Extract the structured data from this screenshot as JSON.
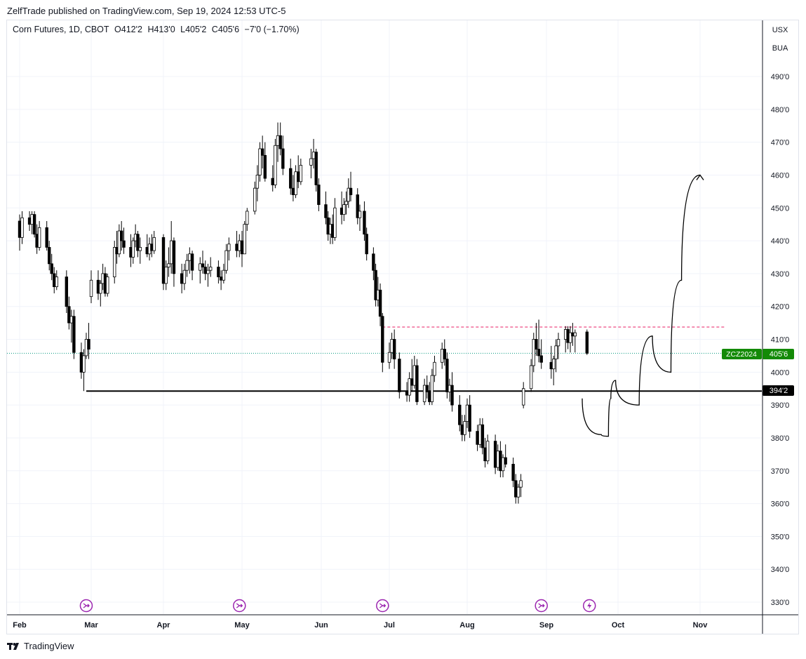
{
  "publisher_line": "ZelfTrade published on TradingView.com, Sep 19, 2024 12:53 UTC-5",
  "legend": {
    "symbol": "Corn Futures, 1D, CBOT",
    "open": "O412'2",
    "high": "H413'0",
    "low": "L405'2",
    "close": "C405'6",
    "change": "−7'0 (−1.70%)"
  },
  "currency_buttons": [
    "USX",
    "BUA"
  ],
  "footer": {
    "brand": "TradingView",
    "logo_icon": "tradingview-logo-icon"
  },
  "price_labels": {
    "symbol_tag": "ZCZ2024",
    "last_price": "405'6",
    "support_price": "394'2"
  },
  "colors": {
    "up_candle": "#ffffff",
    "down_candle": "#000000",
    "support_line": "#000000",
    "resistance_line": "#e91e63",
    "last_price_line": "#089981",
    "last_price_tag": "#138a07",
    "event_icon": "#9c27b0"
  },
  "chart_data": {
    "type": "candlestick",
    "title": "Corn Futures, 1D, CBOT",
    "x_ticks": [
      "Feb",
      "Mar",
      "Apr",
      "May",
      "Jun",
      "Jul",
      "Aug",
      "Sep",
      "Oct",
      "Nov"
    ],
    "y_ticks": [
      "330'0",
      "340'0",
      "350'0",
      "360'0",
      "370'0",
      "380'0",
      "390'0",
      "400'0",
      "410'0",
      "420'0",
      "430'0",
      "440'0",
      "450'0",
      "460'0",
      "470'0",
      "480'0",
      "490'0"
    ],
    "y_range": [
      326,
      500
    ],
    "last_price": 405.75,
    "horizontal_lines": [
      {
        "name": "support",
        "value": 394.25,
        "style": "solid",
        "start_date": "2024-02-28"
      },
      {
        "name": "resistance",
        "value": 413.75,
        "style": "dashed",
        "start_date": "2024-06-28"
      }
    ],
    "event_icons": [
      {
        "date": "2024-02-28",
        "kind": "split-arrow-icon"
      },
      {
        "date": "2024-04-30",
        "kind": "split-arrow-icon"
      },
      {
        "date": "2024-06-28",
        "kind": "split-arrow-icon"
      },
      {
        "date": "2024-08-30",
        "kind": "split-arrow-icon"
      },
      {
        "date": "2024-09-19",
        "kind": "lightning-icon"
      }
    ],
    "projection_path": [
      [
        "2024-09-16",
        392
      ],
      [
        "2024-09-24",
        381
      ],
      [
        "2024-09-27",
        380.5
      ],
      [
        "2024-09-28",
        392
      ],
      [
        "2024-09-30",
        397.5
      ],
      [
        "2024-10-09",
        390
      ],
      [
        "2024-10-14",
        411
      ],
      [
        "2024-10-21",
        400
      ],
      [
        "2024-10-25",
        428
      ],
      [
        "2024-11-01",
        460
      ]
    ],
    "candles": [
      [
        "2024-02-01",
        446,
        448,
        437,
        441
      ],
      [
        "2024-02-02",
        441,
        449,
        439,
        447
      ],
      [
        "2024-02-05",
        447,
        449,
        443,
        445
      ],
      [
        "2024-02-06",
        445,
        449,
        442,
        448
      ],
      [
        "2024-02-07",
        448,
        449,
        441,
        442
      ],
      [
        "2024-02-08",
        442,
        445,
        436,
        438
      ],
      [
        "2024-02-09",
        438,
        446,
        437,
        444
      ],
      [
        "2024-02-12",
        444,
        446,
        437,
        438
      ],
      [
        "2024-02-13",
        438,
        440,
        431,
        433
      ],
      [
        "2024-02-14",
        433,
        436,
        428,
        430
      ],
      [
        "2024-02-15",
        430,
        432,
        424,
        426
      ],
      [
        "2024-02-16",
        426,
        431,
        425,
        429
      ],
      [
        "2024-02-20",
        429,
        431,
        418,
        420
      ],
      [
        "2024-02-21",
        420,
        423,
        413,
        415
      ],
      [
        "2024-02-22",
        415,
        419,
        409,
        417
      ],
      [
        "2024-02-23",
        417,
        419,
        404,
        406
      ],
      [
        "2024-02-26",
        406,
        409,
        398,
        400
      ],
      [
        "2024-02-27",
        400,
        407,
        394.25,
        405
      ],
      [
        "2024-02-28",
        405,
        412,
        404,
        410
      ],
      [
        "2024-02-29",
        410,
        415,
        404,
        407
      ],
      [
        "2024-03-01",
        423,
        431,
        421,
        428
      ],
      [
        "2024-03-04",
        428,
        431,
        422,
        424
      ],
      [
        "2024-03-05",
        424,
        428,
        420,
        427
      ],
      [
        "2024-03-06",
        427,
        433,
        425,
        430
      ],
      [
        "2024-03-07",
        430,
        432,
        423,
        424
      ],
      [
        "2024-03-08",
        424,
        430,
        423,
        429
      ],
      [
        "2024-03-11",
        429,
        440,
        427,
        438
      ],
      [
        "2024-03-12",
        438,
        443,
        433,
        436
      ],
      [
        "2024-03-13",
        436,
        445,
        435,
        443
      ],
      [
        "2024-03-14",
        443,
        446,
        437,
        440
      ],
      [
        "2024-03-15",
        440,
        444,
        436,
        438
      ],
      [
        "2024-03-18",
        438,
        442,
        432,
        435
      ],
      [
        "2024-03-19",
        435,
        441,
        433,
        440
      ],
      [
        "2024-03-20",
        440,
        445,
        438,
        442
      ],
      [
        "2024-03-21",
        442,
        443,
        435,
        437
      ],
      [
        "2024-03-22",
        437,
        441,
        433,
        438
      ],
      [
        "2024-03-25",
        438,
        442,
        435,
        436
      ],
      [
        "2024-03-26",
        436,
        441,
        434,
        439
      ],
      [
        "2024-03-27",
        439,
        442,
        435,
        437
      ],
      [
        "2024-03-28",
        437,
        443,
        436,
        441
      ],
      [
        "2024-04-01",
        441,
        442,
        425,
        427
      ],
      [
        "2024-04-02",
        427,
        434,
        425,
        432
      ],
      [
        "2024-04-03",
        432,
        438,
        429,
        433
      ],
      [
        "2024-04-04",
        433,
        446,
        430,
        440
      ],
      [
        "2024-04-05",
        440,
        441,
        426,
        430
      ],
      [
        "2024-04-08",
        430,
        433,
        424,
        427
      ],
      [
        "2024-04-09",
        427,
        433,
        425,
        431
      ],
      [
        "2024-04-10",
        431,
        436,
        429,
        434
      ],
      [
        "2024-04-11",
        434,
        438,
        430,
        436
      ],
      [
        "2024-04-12",
        436,
        437,
        428,
        431
      ],
      [
        "2024-04-15",
        431,
        435,
        427,
        433
      ],
      [
        "2024-04-16",
        433,
        437,
        430,
        432
      ],
      [
        "2024-04-17",
        432,
        434,
        428,
        430
      ],
      [
        "2024-04-18",
        430,
        433,
        426,
        431
      ],
      [
        "2024-04-19",
        431,
        435,
        429,
        432
      ],
      [
        "2024-04-22",
        432,
        434,
        427,
        429
      ],
      [
        "2024-04-23",
        429,
        431,
        425,
        428
      ],
      [
        "2024-04-24",
        428,
        433,
        427,
        431
      ],
      [
        "2024-04-25",
        431,
        439,
        430,
        437
      ],
      [
        "2024-04-26",
        437,
        441,
        434,
        439
      ],
      [
        "2024-04-29",
        439,
        443,
        435,
        437
      ],
      [
        "2024-04-30",
        437,
        442,
        435,
        440
      ],
      [
        "2024-05-01",
        440,
        443,
        432,
        436
      ],
      [
        "2024-05-02",
        436,
        446,
        436,
        445
      ],
      [
        "2024-05-03",
        445,
        450,
        443,
        449
      ],
      [
        "2024-05-06",
        449,
        458,
        448,
        456
      ],
      [
        "2024-05-07",
        456,
        463,
        452,
        460
      ],
      [
        "2024-05-08",
        460,
        470,
        458,
        468
      ],
      [
        "2024-05-09",
        468,
        472,
        462,
        466
      ],
      [
        "2024-05-10",
        466,
        470,
        458,
        459
      ],
      [
        "2024-05-13",
        459,
        463,
        455,
        457
      ],
      [
        "2024-05-14",
        457,
        471,
        456,
        469
      ],
      [
        "2024-05-15",
        469,
        476,
        464,
        472
      ],
      [
        "2024-05-16",
        472,
        476,
        466,
        468
      ],
      [
        "2024-05-17",
        468,
        472,
        460,
        462
      ],
      [
        "2024-05-20",
        462,
        465,
        454,
        456
      ],
      [
        "2024-05-21",
        456,
        460,
        452,
        454
      ],
      [
        "2024-05-22",
        454,
        463,
        453,
        461
      ],
      [
        "2024-05-23",
        461,
        466,
        456,
        458
      ],
      [
        "2024-05-24",
        458,
        465,
        457,
        463
      ],
      [
        "2024-05-28",
        463,
        468,
        459,
        465
      ],
      [
        "2024-05-29",
        465,
        471,
        462,
        467
      ],
      [
        "2024-05-30",
        467,
        468,
        455,
        457
      ],
      [
        "2024-05-31",
        457,
        459,
        449,
        451
      ],
      [
        "2024-06-03",
        451,
        455,
        445,
        447
      ],
      [
        "2024-06-04",
        447,
        449,
        440,
        442
      ],
      [
        "2024-06-05",
        442,
        447,
        439,
        445
      ],
      [
        "2024-06-06",
        445,
        448,
        439,
        441
      ],
      [
        "2024-06-07",
        441,
        453,
        440,
        450
      ],
      [
        "2024-06-10",
        450,
        455,
        445,
        448
      ],
      [
        "2024-06-11",
        448,
        453,
        446,
        451
      ],
      [
        "2024-06-12",
        451,
        455,
        448,
        452
      ],
      [
        "2024-06-13",
        452,
        459,
        450,
        456
      ],
      [
        "2024-06-14",
        456,
        461,
        452,
        454
      ],
      [
        "2024-06-17",
        454,
        456,
        445,
        447
      ],
      [
        "2024-06-18",
        447,
        451,
        443,
        449
      ],
      [
        "2024-06-20",
        449,
        452,
        440,
        442
      ],
      [
        "2024-06-21",
        442,
        444,
        434,
        436
      ],
      [
        "2024-06-24",
        436,
        438,
        428,
        431
      ],
      [
        "2024-06-25",
        431,
        433,
        420,
        422
      ],
      [
        "2024-06-26",
        422,
        429,
        420,
        425
      ],
      [
        "2024-06-27",
        425,
        427,
        414,
        417
      ],
      [
        "2024-06-28",
        417,
        418,
        400,
        403
      ],
      [
        "2024-07-01",
        403,
        409,
        401,
        406
      ],
      [
        "2024-07-02",
        406,
        412,
        404,
        410
      ],
      [
        "2024-07-03",
        410,
        413,
        401,
        404
      ],
      [
        "2024-07-05",
        404,
        406,
        392,
        394
      ],
      [
        "2024-07-08",
        394,
        397,
        391,
        393
      ],
      [
        "2024-07-09",
        393,
        400,
        391,
        398
      ],
      [
        "2024-07-10",
        398,
        404,
        394,
        396
      ],
      [
        "2024-07-11",
        396,
        405,
        395,
        402
      ],
      [
        "2024-07-12",
        402,
        404,
        390,
        391
      ],
      [
        "2024-07-15",
        391,
        398,
        390,
        396
      ],
      [
        "2024-07-16",
        396,
        399,
        392,
        394
      ],
      [
        "2024-07-17",
        394,
        397,
        390,
        391
      ],
      [
        "2024-07-18",
        391,
        401,
        390,
        399
      ],
      [
        "2024-07-19",
        399,
        405,
        397,
        403
      ],
      [
        "2024-07-22",
        403,
        409,
        401,
        407
      ],
      [
        "2024-07-23",
        407,
        410,
        402,
        404
      ],
      [
        "2024-07-24",
        404,
        406,
        392,
        394
      ],
      [
        "2024-07-25",
        394,
        398,
        391,
        396
      ],
      [
        "2024-07-26",
        396,
        400,
        388,
        390
      ],
      [
        "2024-07-29",
        390,
        393,
        382,
        384
      ],
      [
        "2024-07-30",
        384,
        387,
        379,
        381
      ],
      [
        "2024-07-31",
        381,
        387,
        379,
        385
      ],
      [
        "2024-08-01",
        385,
        392,
        383,
        390
      ],
      [
        "2024-08-02",
        390,
        393,
        380,
        382
      ],
      [
        "2024-08-05",
        382,
        384,
        376,
        378
      ],
      [
        "2024-08-06",
        378,
        386,
        377,
        384
      ],
      [
        "2024-08-07",
        384,
        386,
        375,
        377
      ],
      [
        "2024-08-08",
        377,
        380,
        371,
        373
      ],
      [
        "2024-08-09",
        373,
        381,
        372,
        379
      ],
      [
        "2024-08-12",
        379,
        381,
        369,
        371
      ],
      [
        "2024-08-13",
        371,
        378,
        370,
        376
      ],
      [
        "2024-08-14",
        376,
        379,
        368,
        370
      ],
      [
        "2024-08-15",
        370,
        375,
        368,
        374
      ],
      [
        "2024-08-16",
        374,
        378,
        371,
        372
      ],
      [
        "2024-08-19",
        372,
        374,
        365,
        367
      ],
      [
        "2024-08-20",
        367,
        369,
        360,
        362
      ],
      [
        "2024-08-21",
        362,
        366,
        360,
        365
      ],
      [
        "2024-08-22",
        365,
        369,
        362,
        367
      ],
      [
        "2024-08-23",
        390,
        397,
        389,
        395
      ],
      [
        "2024-08-26",
        395,
        404,
        394,
        402
      ],
      [
        "2024-08-27",
        402,
        412,
        400,
        410
      ],
      [
        "2024-08-28",
        410,
        415,
        405,
        407
      ],
      [
        "2024-08-29",
        407,
        416,
        403,
        405
      ],
      [
        "2024-08-30",
        405,
        410,
        401,
        403
      ],
      [
        "2024-09-03",
        403,
        408,
        398,
        401
      ],
      [
        "2024-09-04",
        401,
        405,
        396,
        404
      ],
      [
        "2024-09-05",
        404,
        410,
        400,
        408
      ],
      [
        "2024-09-06",
        408,
        412,
        404,
        410
      ],
      [
        "2024-09-09",
        410,
        414,
        406,
        413
      ],
      [
        "2024-09-10",
        413,
        414,
        407,
        409
      ],
      [
        "2024-09-11",
        409,
        414,
        406,
        412
      ],
      [
        "2024-09-12",
        412,
        415,
        408,
        411
      ],
      [
        "2024-09-13",
        411,
        413,
        406,
        412
      ],
      [
        "2024-09-18",
        412.25,
        413,
        405.25,
        405.75
      ]
    ]
  }
}
